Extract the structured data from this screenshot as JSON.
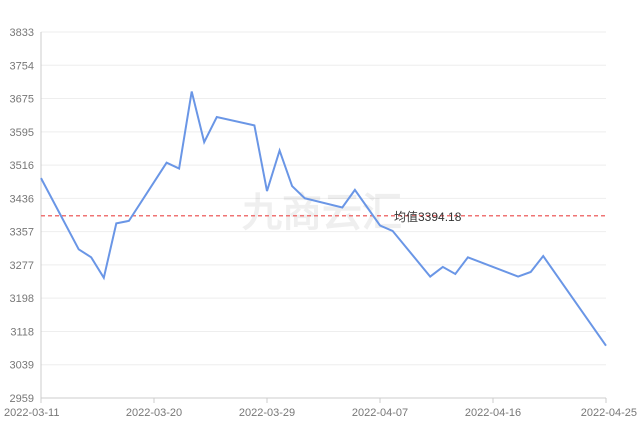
{
  "chart_data": {
    "type": "line",
    "title": "",
    "xlabel": "",
    "ylabel": "",
    "ylim": [
      2959,
      3833
    ],
    "y_ticks": [
      "3833",
      "3754",
      "3675",
      "3595",
      "3516",
      "3436",
      "3357",
      "3277",
      "3198",
      "3118",
      "3039",
      "2959"
    ],
    "x_ticks": [
      "2022-03-11",
      "2022-03-20",
      "2022-03-29",
      "2022-04-07",
      "2022-04-16",
      "2022-04-25"
    ],
    "grid": true,
    "series": [
      {
        "x": [
          "2022-03-11",
          "2022-03-14",
          "2022-03-15",
          "2022-03-16",
          "2022-03-17",
          "2022-03-18",
          "2022-03-21",
          "2022-03-22",
          "2022-03-23",
          "2022-03-24",
          "2022-03-25",
          "2022-03-28",
          "2022-03-29",
          "2022-03-30",
          "2022-03-31",
          "2022-04-01",
          "2022-04-04",
          "2022-04-05",
          "2022-04-07",
          "2022-04-08",
          "2022-04-11",
          "2022-04-12",
          "2022-04-13",
          "2022-04-14",
          "2022-04-18",
          "2022-04-19",
          "2022-04-20",
          "2022-04-25"
        ],
        "values": [
          3484,
          3314,
          3295,
          3246,
          3376,
          3382,
          3521,
          3507,
          3691,
          3570,
          3630,
          3610,
          3453,
          3550,
          3465,
          3436,
          3414,
          3456,
          3371,
          3358,
          3249,
          3272,
          3255,
          3295,
          3249,
          3260,
          3298,
          3084
        ]
      }
    ],
    "mean": {
      "value": 3394.18,
      "label": "均值3394.18",
      "color": "#ef7474"
    },
    "line_color": "#6a96e6"
  },
  "watermark": "九商云汇"
}
